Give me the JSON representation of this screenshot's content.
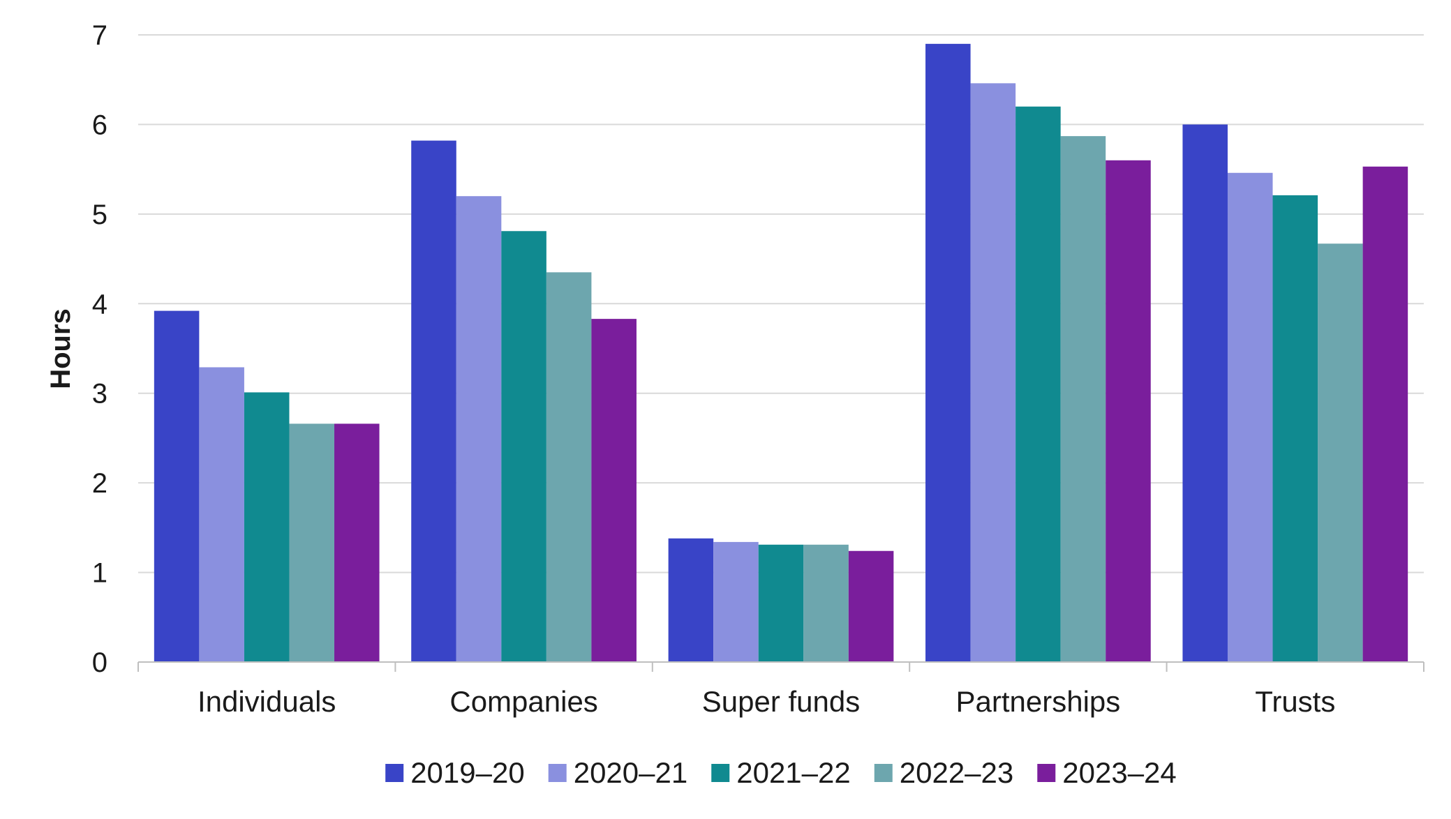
{
  "chart_data": {
    "type": "bar",
    "title": "",
    "xlabel": "",
    "ylabel": "Hours",
    "ylim": [
      0,
      7
    ],
    "yticks": [
      0,
      1,
      2,
      3,
      4,
      5,
      6,
      7
    ],
    "grid": true,
    "legend_position": "bottom",
    "categories": [
      "Individuals",
      "Companies",
      "Super funds",
      "Partnerships",
      "Trusts"
    ],
    "series": [
      {
        "name": "2019–20",
        "color": "#3944C7",
        "values": [
          3.92,
          5.82,
          1.38,
          6.9,
          6.0
        ]
      },
      {
        "name": "2020–21",
        "color": "#8A90DF",
        "values": [
          3.29,
          5.2,
          1.34,
          6.46,
          5.46
        ]
      },
      {
        "name": "2021–22",
        "color": "#108A90",
        "values": [
          3.01,
          4.81,
          1.31,
          6.2,
          5.21
        ]
      },
      {
        "name": "2022–23",
        "color": "#6DA6AE",
        "values": [
          2.66,
          4.35,
          1.31,
          5.87,
          4.67
        ]
      },
      {
        "name": "2023–24",
        "color": "#7A1E9C",
        "values": [
          2.66,
          3.83,
          1.24,
          5.6,
          5.53
        ]
      }
    ]
  }
}
